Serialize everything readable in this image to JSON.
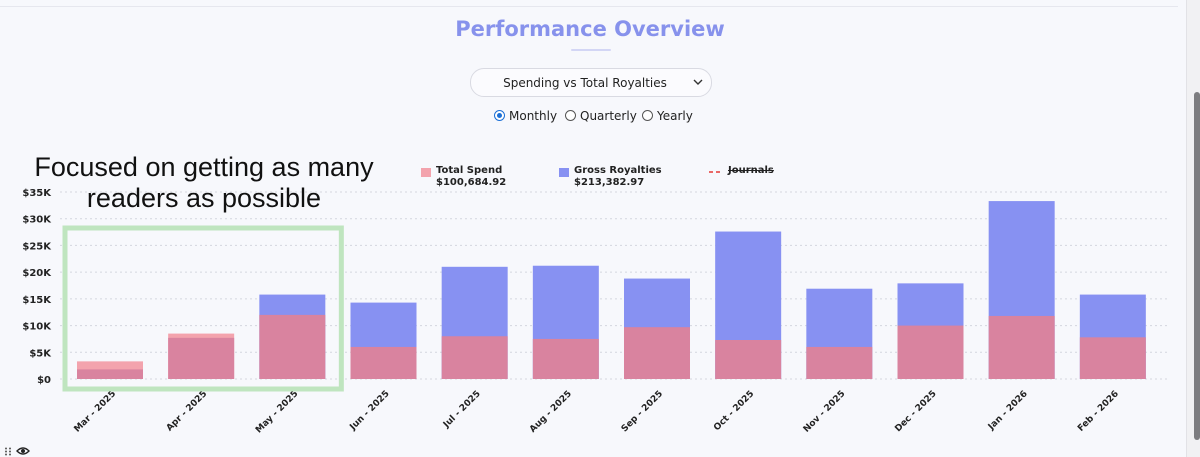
{
  "header": {
    "title": "Performance Overview"
  },
  "metric_select": {
    "value": "Spending vs Total Royalties"
  },
  "period": {
    "options": [
      {
        "label": "Monthly",
        "checked": true
      },
      {
        "label": "Quarterly",
        "checked": false
      },
      {
        "label": "Yearly",
        "checked": false
      }
    ]
  },
  "annotation": {
    "line1": "Focused on getting as many",
    "line2": "readers as possible"
  },
  "legend": {
    "spend_name": "Total Spend",
    "spend_total": "$100,684.92",
    "royalties_name": "Gross Royalties",
    "royalties_total": "$213,382.97",
    "journals_name": "Journals"
  },
  "colors": {
    "spend": "#f3a3ad",
    "royalties": "#8791f2",
    "overlap": "#d9839f",
    "journals": "#e53935",
    "title": "#8792ec",
    "focus_box": "#bfe5bf"
  },
  "icons": {
    "select_chevron": "chevron-down-icon",
    "bottom_left": [
      "drag-handle-icon",
      "eye-icon"
    ]
  },
  "chart_data": {
    "type": "bar",
    "categories": [
      "Mar - 2025",
      "Apr - 2025",
      "May - 2025",
      "Jun - 2025",
      "Jul - 2025",
      "Aug - 2025",
      "Sep - 2025",
      "Oct - 2025",
      "Nov - 2025",
      "Dec - 2025",
      "Jan - 2026",
      "Feb - 2026"
    ],
    "series": [
      {
        "name": "Total Spend",
        "values": [
          3300,
          8500,
          12000,
          6000,
          8000,
          7500,
          9700,
          7300,
          6000,
          10000,
          11800,
          7800
        ]
      },
      {
        "name": "Gross Royalties",
        "values": [
          1800,
          7700,
          15800,
          14300,
          21000,
          21200,
          18800,
          27600,
          16900,
          17900,
          33300,
          15800
        ]
      }
    ],
    "overlaid": true,
    "ylim": [
      0,
      35000
    ],
    "yticks": [
      "$0",
      "$5K",
      "$10K",
      "$15K",
      "$20K",
      "$25K",
      "$30K",
      "$35K"
    ],
    "ytick_values": [
      0,
      5000,
      10000,
      15000,
      20000,
      25000,
      30000,
      35000
    ],
    "grid": true,
    "legend_position": "top",
    "highlighted_range": [
      "Mar - 2025",
      "May - 2025"
    ]
  }
}
